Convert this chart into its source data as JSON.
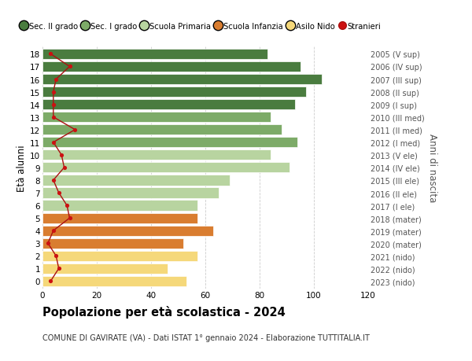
{
  "ages": [
    18,
    17,
    16,
    15,
    14,
    13,
    12,
    11,
    10,
    9,
    8,
    7,
    6,
    5,
    4,
    3,
    2,
    1,
    0
  ],
  "bar_values": [
    83,
    95,
    103,
    97,
    93,
    84,
    88,
    94,
    84,
    91,
    69,
    65,
    57,
    57,
    63,
    52,
    57,
    46,
    53
  ],
  "bar_colors": [
    "#4a7c3f",
    "#4a7c3f",
    "#4a7c3f",
    "#4a7c3f",
    "#4a7c3f",
    "#7dab68",
    "#7dab68",
    "#7dab68",
    "#b8d4a0",
    "#b8d4a0",
    "#b8d4a0",
    "#b8d4a0",
    "#b8d4a0",
    "#d97d30",
    "#d97d30",
    "#d97d30",
    "#f5d87a",
    "#f5d87a",
    "#f5d87a"
  ],
  "stranieri_values": [
    3,
    10,
    5,
    4,
    4,
    4,
    12,
    4,
    7,
    8,
    4,
    6,
    9,
    10,
    4,
    2,
    5,
    6,
    3
  ],
  "right_labels": [
    "2005 (V sup)",
    "2006 (IV sup)",
    "2007 (III sup)",
    "2008 (II sup)",
    "2009 (I sup)",
    "2010 (III med)",
    "2011 (II med)",
    "2012 (I med)",
    "2013 (V ele)",
    "2014 (IV ele)",
    "2015 (III ele)",
    "2016 (II ele)",
    "2017 (I ele)",
    "2018 (mater)",
    "2019 (mater)",
    "2020 (mater)",
    "2021 (nido)",
    "2022 (nido)",
    "2023 (nido)"
  ],
  "title": "Popolazione per età scolastica - 2024",
  "subtitle": "COMUNE DI GAVIRATE (VA) - Dati ISTAT 1° gennaio 2024 - Elaborazione TUTTITALIA.IT",
  "ylabel_left": "Età alunni",
  "ylabel_right": "Anni di nascita",
  "legend_labels": [
    "Sec. II grado",
    "Sec. I grado",
    "Scuola Primaria",
    "Scuola Infanzia",
    "Asilo Nido",
    "Stranieri"
  ],
  "legend_colors": [
    "#4a7c3f",
    "#7dab68",
    "#b8d4a0",
    "#d97d30",
    "#f5d87a",
    "#cc1111"
  ],
  "xlim": [
    0,
    120
  ],
  "background_color": "#ffffff",
  "bar_height": 0.82,
  "grid_color": "#cccccc",
  "stranieri_line_color": "#aa1111",
  "stranieri_dot_color": "#cc1111"
}
